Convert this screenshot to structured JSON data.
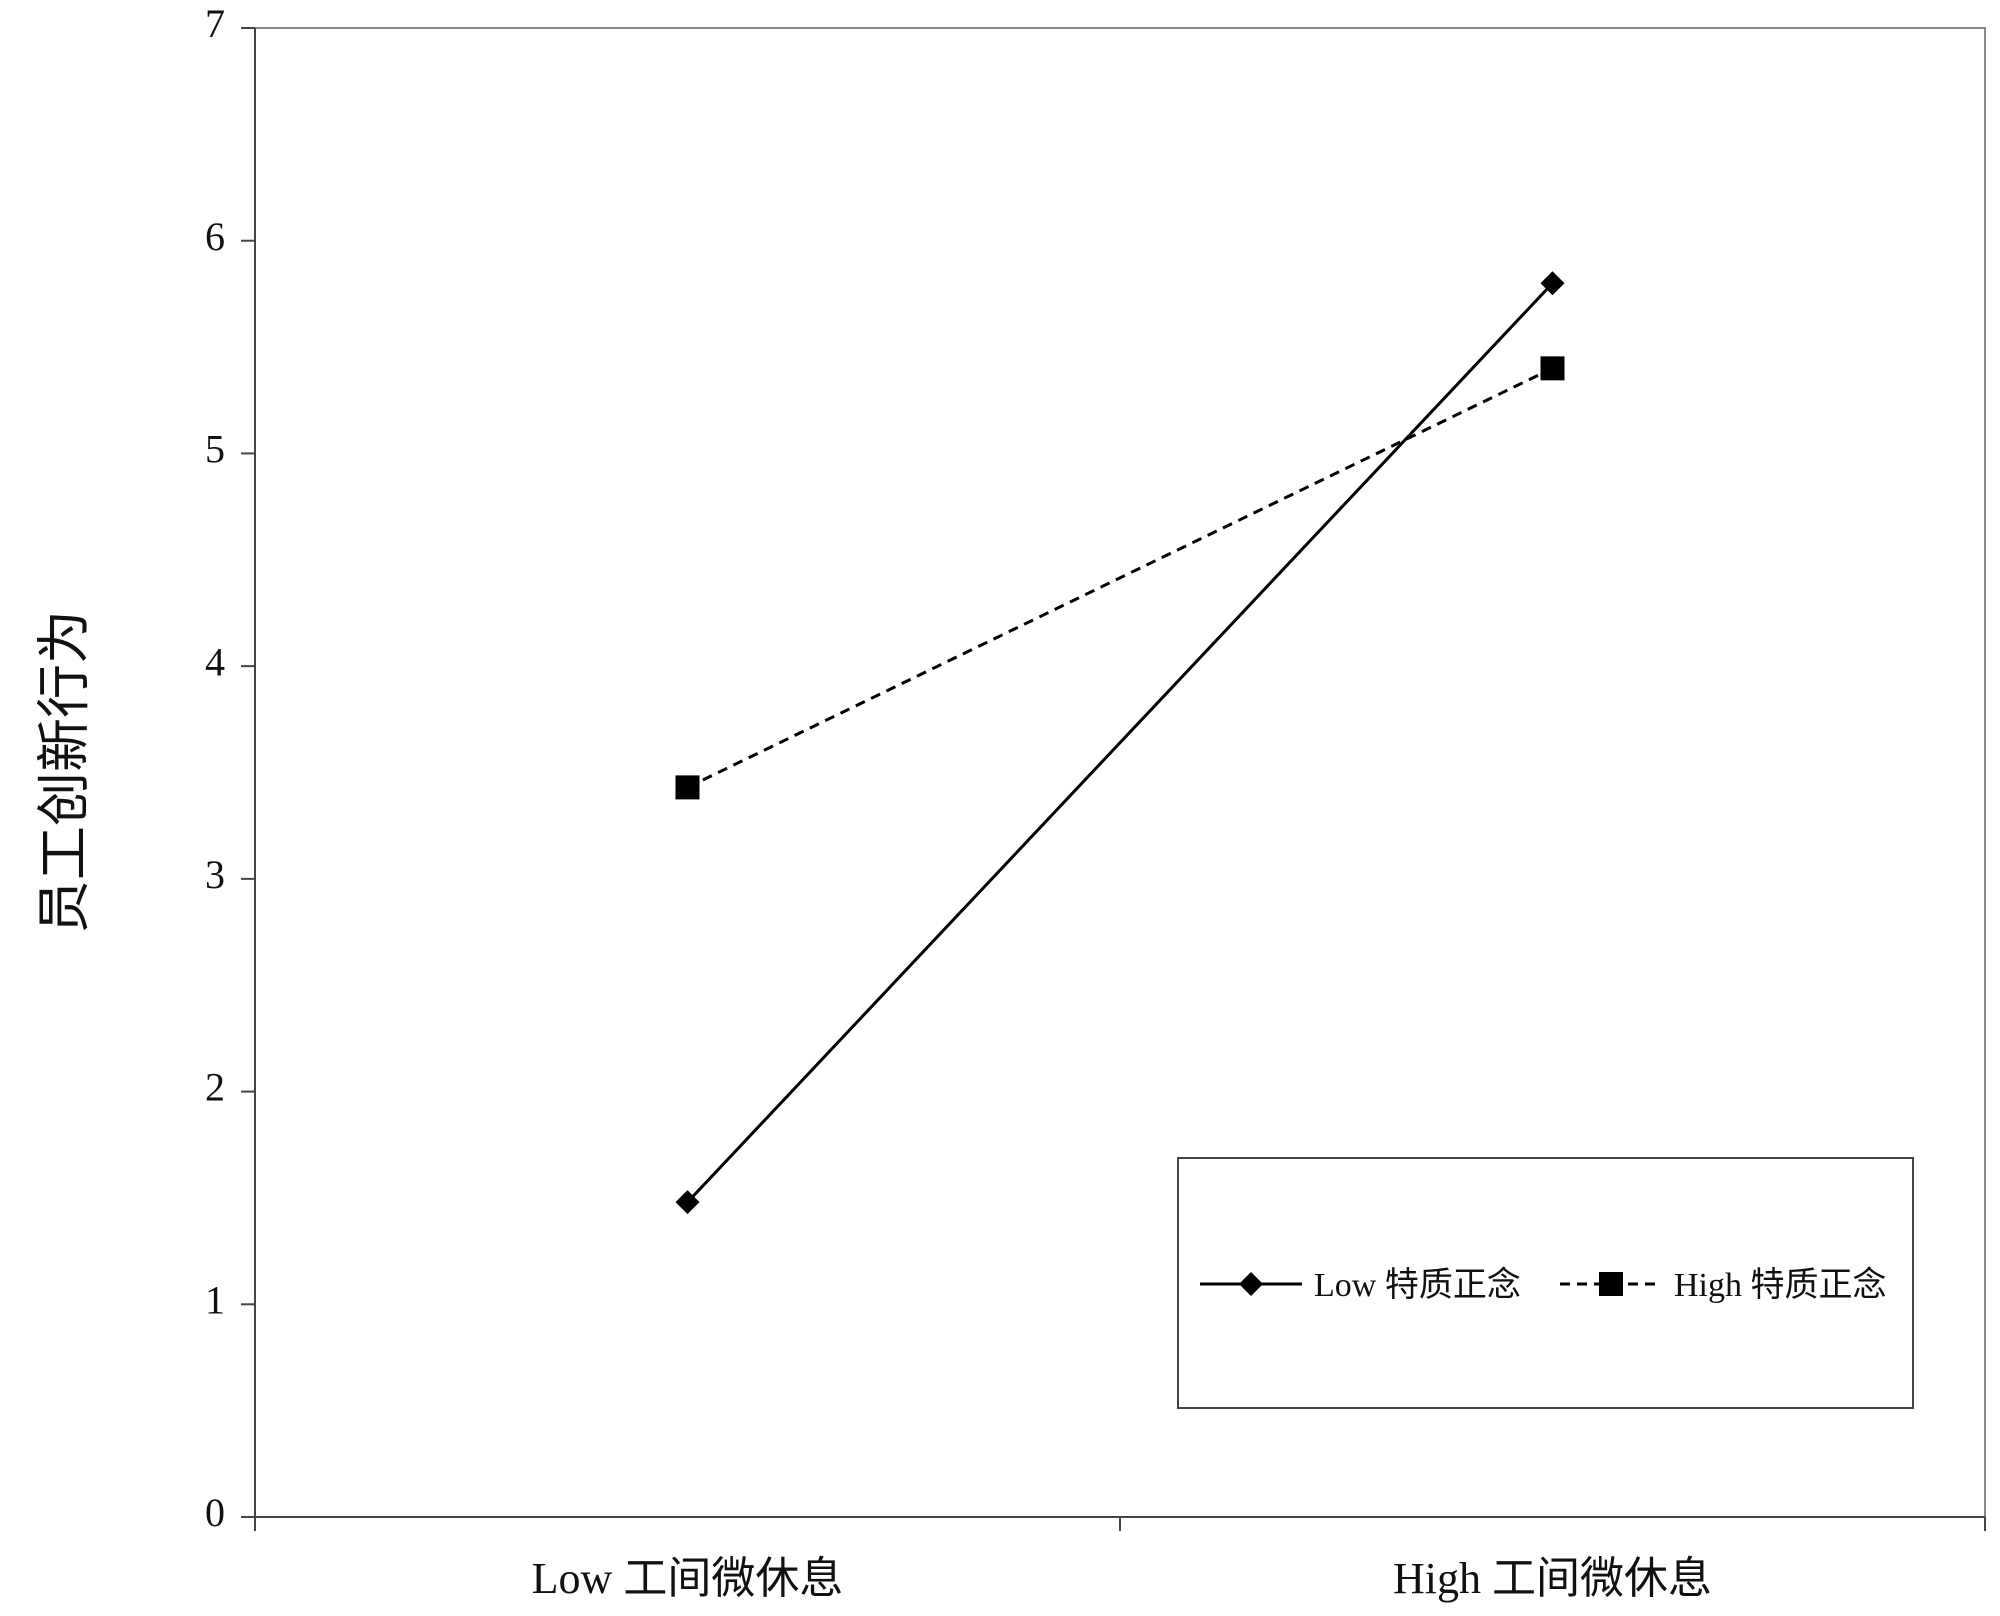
{
  "chart_data": {
    "type": "line",
    "categories": [
      "Low 工间微休息",
      "High 工间微休息"
    ],
    "series": [
      {
        "name": "Low 特质正念",
        "values": [
          1.48,
          5.8
        ],
        "line_style": "solid",
        "marker": "diamond",
        "color": "#000000"
      },
      {
        "name": "High 特质正念",
        "values": [
          3.43,
          5.4
        ],
        "line_style": "dashed",
        "marker": "square",
        "color": "#000000"
      }
    ],
    "ylabel": "员工创新行为",
    "xlabel": "",
    "ylim": [
      0,
      7
    ],
    "yticks": [
      0,
      1,
      2,
      3,
      4,
      5,
      6,
      7
    ],
    "grid": false,
    "legend_position": "bottom-right"
  }
}
